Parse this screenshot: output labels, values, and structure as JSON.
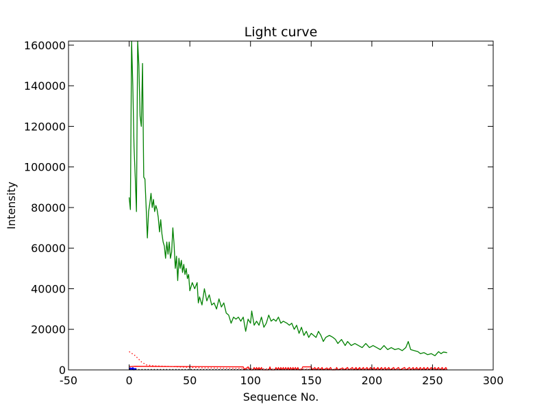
{
  "chart_data": {
    "type": "line",
    "title": "Light curve",
    "xlabel": "Sequence No.",
    "ylabel": "Intensity",
    "xlim": [
      -50,
      300
    ],
    "ylim": [
      0,
      162000
    ],
    "xticks": [
      "-50",
      "0",
      "50",
      "100",
      "150",
      "200",
      "250",
      "300"
    ],
    "xtick_values": [
      -50,
      0,
      50,
      100,
      150,
      200,
      250,
      300
    ],
    "yticks": [
      "0",
      "20000",
      "40000",
      "60000",
      "80000",
      "100000",
      "120000",
      "140000",
      "160000"
    ],
    "ytick_values": [
      0,
      20000,
      40000,
      60000,
      80000,
      100000,
      120000,
      140000,
      160000
    ],
    "grid": false,
    "legend": false,
    "series": [
      {
        "color": "#008000",
        "style": "solid",
        "points": [
          [
            0,
            85000
          ],
          [
            1,
            79000
          ],
          [
            2,
            162000
          ],
          [
            3,
            140000
          ],
          [
            4,
            110000
          ],
          [
            5,
            95000
          ],
          [
            6,
            78000
          ],
          [
            7,
            162000
          ],
          [
            8,
            150000
          ],
          [
            9,
            125000
          ],
          [
            10,
            120000
          ],
          [
            11,
            151000
          ],
          [
            12,
            95000
          ],
          [
            13,
            94000
          ],
          [
            14,
            80000
          ],
          [
            15,
            65000
          ],
          [
            16,
            78000
          ],
          [
            17,
            82000
          ],
          [
            18,
            87000
          ],
          [
            19,
            80000
          ],
          [
            20,
            84000
          ],
          [
            21,
            78000
          ],
          [
            22,
            81000
          ],
          [
            23,
            79000
          ],
          [
            24,
            75000
          ],
          [
            25,
            68000
          ],
          [
            26,
            74000
          ],
          [
            27,
            67000
          ],
          [
            28,
            63000
          ],
          [
            29,
            61000
          ],
          [
            30,
            55000
          ],
          [
            31,
            63000
          ],
          [
            32,
            57000
          ],
          [
            33,
            63000
          ],
          [
            34,
            55000
          ],
          [
            35,
            58000
          ],
          [
            36,
            70000
          ],
          [
            37,
            62000
          ],
          [
            38,
            50000
          ],
          [
            39,
            56000
          ],
          [
            40,
            44000
          ],
          [
            41,
            55000
          ],
          [
            42,
            50000
          ],
          [
            43,
            54000
          ],
          [
            44,
            48000
          ],
          [
            45,
            52000
          ],
          [
            46,
            47000
          ],
          [
            47,
            50000
          ],
          [
            48,
            45000
          ],
          [
            49,
            47000
          ],
          [
            50,
            39000
          ],
          [
            52,
            43000
          ],
          [
            54,
            40000
          ],
          [
            56,
            43000
          ],
          [
            57,
            33000
          ],
          [
            58,
            36000
          ],
          [
            60,
            32000
          ],
          [
            62,
            40000
          ],
          [
            64,
            34000
          ],
          [
            66,
            37000
          ],
          [
            68,
            32000
          ],
          [
            70,
            33000
          ],
          [
            72,
            30000
          ],
          [
            74,
            35000
          ],
          [
            76,
            31000
          ],
          [
            78,
            33000
          ],
          [
            80,
            28000
          ],
          [
            82,
            27000
          ],
          [
            84,
            23000
          ],
          [
            86,
            26000
          ],
          [
            88,
            25000
          ],
          [
            90,
            26000
          ],
          [
            92,
            24000
          ],
          [
            94,
            26000
          ],
          [
            96,
            19000
          ],
          [
            98,
            25000
          ],
          [
            100,
            23000
          ],
          [
            101,
            29000
          ],
          [
            103,
            22000
          ],
          [
            105,
            24000
          ],
          [
            107,
            22000
          ],
          [
            109,
            26000
          ],
          [
            111,
            21000
          ],
          [
            113,
            23000
          ],
          [
            115,
            27000
          ],
          [
            117,
            24000
          ],
          [
            119,
            25000
          ],
          [
            121,
            24000
          ],
          [
            123,
            26000
          ],
          [
            125,
            23000
          ],
          [
            127,
            24000
          ],
          [
            130,
            23000
          ],
          [
            132,
            22000
          ],
          [
            134,
            23000
          ],
          [
            136,
            20000
          ],
          [
            138,
            22000
          ],
          [
            140,
            18000
          ],
          [
            142,
            21000
          ],
          [
            144,
            17000
          ],
          [
            146,
            19000
          ],
          [
            148,
            16000
          ],
          [
            150,
            18000
          ],
          [
            152,
            17000
          ],
          [
            154,
            16000
          ],
          [
            156,
            19000
          ],
          [
            158,
            17000
          ],
          [
            160,
            14000
          ],
          [
            162,
            16000
          ],
          [
            165,
            17000
          ],
          [
            168,
            16000
          ],
          [
            170,
            15000
          ],
          [
            172,
            13000
          ],
          [
            175,
            15000
          ],
          [
            178,
            12000
          ],
          [
            180,
            14000
          ],
          [
            183,
            12000
          ],
          [
            186,
            13000
          ],
          [
            189,
            12000
          ],
          [
            192,
            11000
          ],
          [
            195,
            13000
          ],
          [
            198,
            11000
          ],
          [
            201,
            12000
          ],
          [
            204,
            11000
          ],
          [
            207,
            10000
          ],
          [
            210,
            12000
          ],
          [
            213,
            10000
          ],
          [
            216,
            11000
          ],
          [
            219,
            10000
          ],
          [
            222,
            10500
          ],
          [
            225,
            9500
          ],
          [
            228,
            11000
          ],
          [
            230,
            14000
          ],
          [
            232,
            10000
          ],
          [
            235,
            9500
          ],
          [
            238,
            9000
          ],
          [
            240,
            8000
          ],
          [
            243,
            8500
          ],
          [
            246,
            7500
          ],
          [
            249,
            8000
          ],
          [
            252,
            7000
          ],
          [
            255,
            9000
          ],
          [
            257,
            8000
          ],
          [
            259,
            8800
          ],
          [
            262,
            8500
          ]
        ]
      },
      {
        "color": "#ff0000",
        "style": "dotted",
        "points": [
          [
            0,
            9000
          ],
          [
            5,
            7000
          ],
          [
            10,
            4000
          ],
          [
            14,
            2500
          ],
          [
            20,
            2000
          ],
          [
            30,
            1800
          ],
          [
            40,
            1500
          ],
          [
            50,
            1200
          ],
          [
            60,
            1000
          ],
          [
            70,
            900
          ],
          [
            80,
            800
          ],
          [
            90,
            700
          ],
          [
            100,
            600
          ],
          [
            120,
            500
          ],
          [
            150,
            400
          ],
          [
            200,
            300
          ],
          [
            262,
            200
          ]
        ]
      },
      {
        "color": "#ff0000",
        "style": "solid",
        "points": [
          [
            0,
            1600
          ],
          [
            5,
            1800
          ],
          [
            20,
            1700
          ],
          [
            60,
            1600
          ],
          [
            94,
            1500
          ],
          [
            95,
            0
          ],
          [
            98,
            1500
          ],
          [
            100,
            0
          ],
          [
            102,
            0
          ],
          [
            103,
            1200
          ],
          [
            104,
            0
          ],
          [
            105,
            1200
          ],
          [
            106,
            0
          ],
          [
            107,
            1200
          ],
          [
            108,
            0
          ],
          [
            109,
            1200
          ],
          [
            110,
            0
          ],
          [
            111,
            0
          ],
          [
            115,
            0
          ],
          [
            116,
            1500
          ],
          [
            117,
            0
          ],
          [
            120,
            0
          ],
          [
            121,
            1200
          ],
          [
            122,
            0
          ],
          [
            123,
            1200
          ],
          [
            124,
            0
          ],
          [
            125,
            1200
          ],
          [
            126,
            0
          ],
          [
            127,
            1200
          ],
          [
            128,
            0
          ],
          [
            129,
            1200
          ],
          [
            130,
            0
          ],
          [
            131,
            1200
          ],
          [
            132,
            0
          ],
          [
            133,
            1200
          ],
          [
            134,
            0
          ],
          [
            135,
            1200
          ],
          [
            136,
            0
          ],
          [
            137,
            1200
          ],
          [
            138,
            0
          ],
          [
            139,
            1200
          ],
          [
            140,
            0
          ],
          [
            142,
            0
          ],
          [
            143,
            1500
          ],
          [
            150,
            1500
          ],
          [
            151,
            0
          ],
          [
            153,
            1200
          ],
          [
            154,
            0
          ],
          [
            156,
            1200
          ],
          [
            157,
            0
          ],
          [
            159,
            1200
          ],
          [
            160,
            0
          ],
          [
            163,
            1000
          ],
          [
            164,
            0
          ],
          [
            166,
            1200
          ],
          [
            167,
            0
          ],
          [
            170,
            0
          ],
          [
            171,
            1200
          ],
          [
            172,
            0
          ],
          [
            176,
            1000
          ],
          [
            177,
            0
          ],
          [
            180,
            1200
          ],
          [
            181,
            0
          ],
          [
            184,
            1200
          ],
          [
            185,
            0
          ],
          [
            187,
            1200
          ],
          [
            188,
            0
          ],
          [
            190,
            1200
          ],
          [
            191,
            0
          ],
          [
            193,
            1200
          ],
          [
            194,
            0
          ],
          [
            196,
            1200
          ],
          [
            197,
            0
          ],
          [
            199,
            1200
          ],
          [
            200,
            0
          ],
          [
            202,
            1200
          ],
          [
            203,
            0
          ],
          [
            205,
            1200
          ],
          [
            206,
            0
          ],
          [
            208,
            1200
          ],
          [
            209,
            0
          ],
          [
            211,
            1200
          ],
          [
            212,
            0
          ],
          [
            214,
            1200
          ],
          [
            215,
            0
          ],
          [
            218,
            1200
          ],
          [
            219,
            0
          ],
          [
            222,
            1200
          ],
          [
            223,
            0
          ],
          [
            227,
            1200
          ],
          [
            228,
            0
          ],
          [
            231,
            1200
          ],
          [
            232,
            0
          ],
          [
            234,
            1200
          ],
          [
            235,
            0
          ],
          [
            237,
            1200
          ],
          [
            238,
            0
          ],
          [
            240,
            1200
          ],
          [
            241,
            0
          ],
          [
            243,
            1200
          ],
          [
            244,
            0
          ],
          [
            246,
            1200
          ],
          [
            247,
            0
          ],
          [
            249,
            1200
          ],
          [
            250,
            0
          ],
          [
            252,
            1200
          ],
          [
            253,
            0
          ],
          [
            255,
            1200
          ],
          [
            256,
            0
          ],
          [
            258,
            1200
          ],
          [
            259,
            0
          ],
          [
            261,
            1200
          ],
          [
            262,
            0
          ]
        ]
      },
      {
        "color": "#0000ff",
        "style": "solid",
        "points": [
          [
            0,
            300
          ],
          [
            1,
            800
          ],
          [
            2,
            300
          ],
          [
            3,
            900
          ],
          [
            4,
            200
          ],
          [
            5,
            500
          ],
          [
            6,
            300
          ]
        ]
      },
      {
        "color": "#000000",
        "style": "dotted",
        "points": [
          [
            0,
            200
          ],
          [
            262,
            200
          ]
        ]
      }
    ]
  }
}
